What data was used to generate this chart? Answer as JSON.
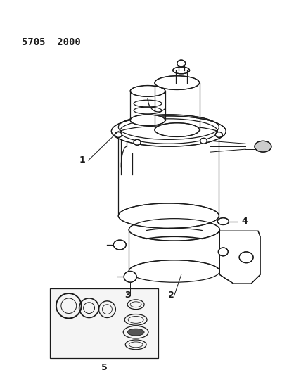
{
  "title": "5705  2000",
  "bg_color": "#ffffff",
  "line_color": "#1a1a1a",
  "title_fontsize": 10,
  "label_fontsize": 9,
  "fig_width": 4.28,
  "fig_height": 5.33,
  "dpi": 100
}
